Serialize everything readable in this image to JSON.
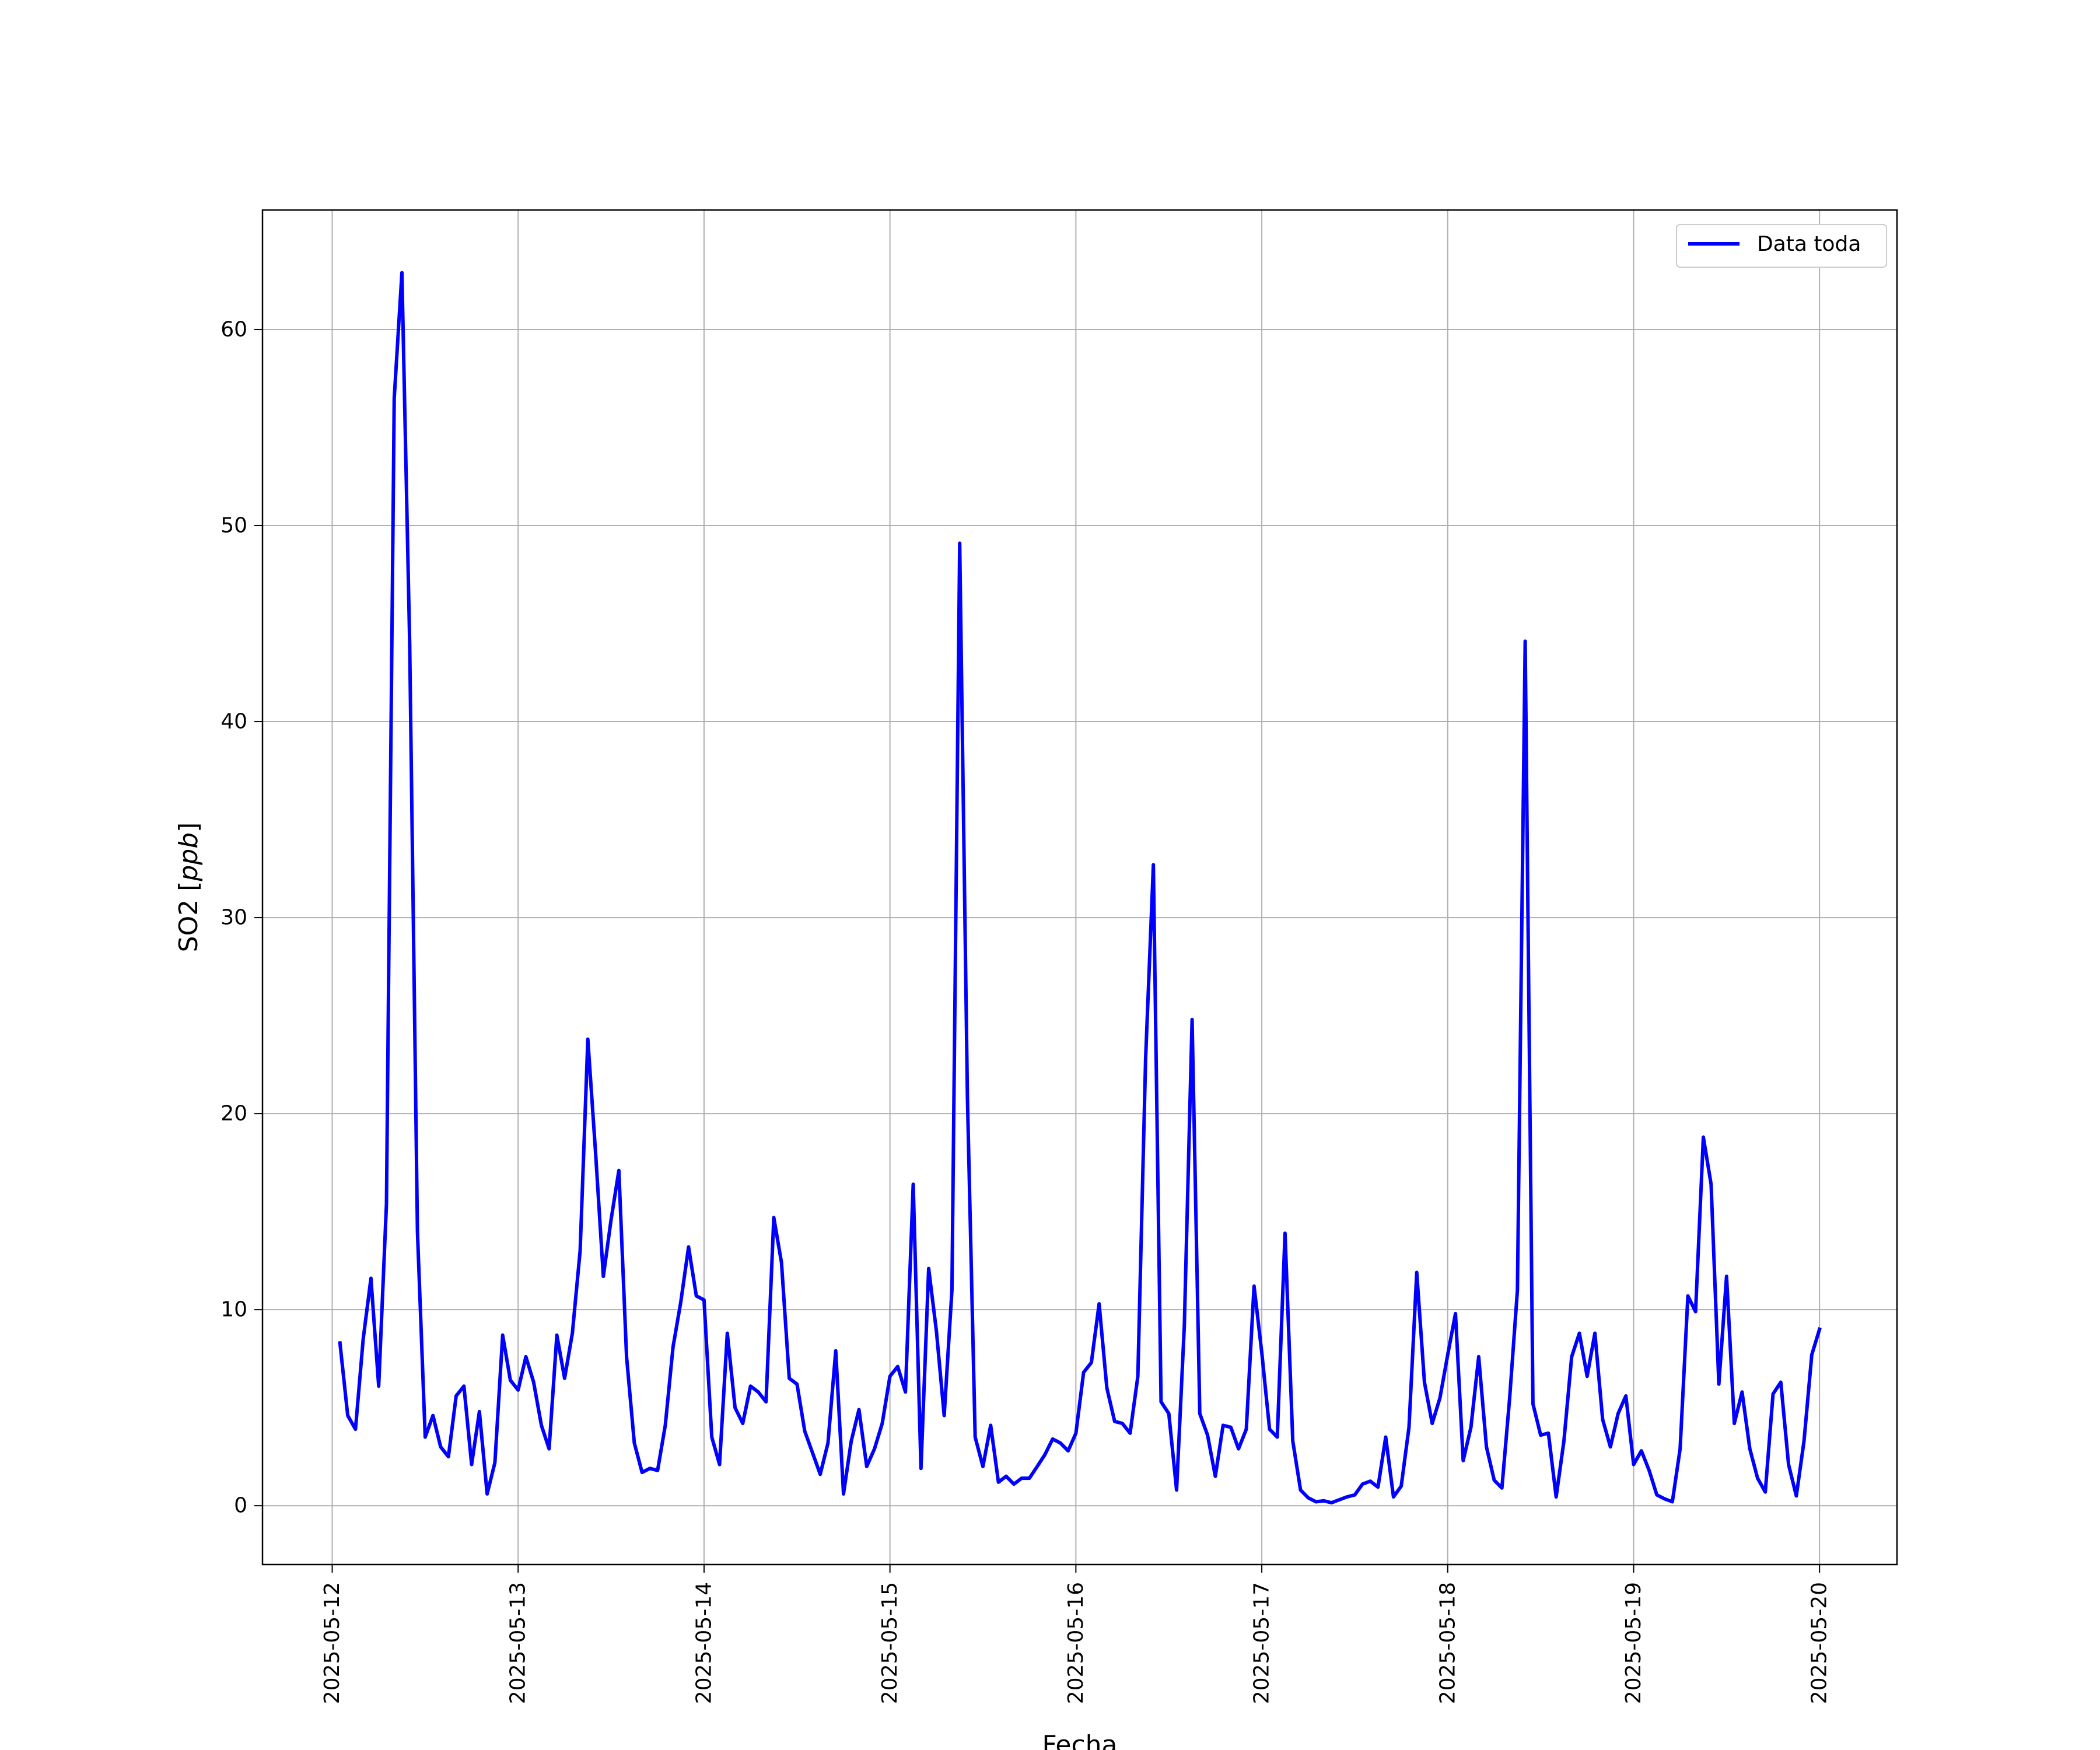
{
  "chart_data": {
    "type": "line",
    "xlabel": "Fecha",
    "ylabel_main": "SO2 [",
    "ylabel_unit": "ppb",
    "ylabel_close": "]",
    "x_tick_labels": [
      "2025-05-12",
      "2025-05-13",
      "2025-05-14",
      "2025-05-15",
      "2025-05-16",
      "2025-05-17",
      "2025-05-18",
      "2025-05-19",
      "2025-05-20"
    ],
    "y_ticks": [
      0,
      10,
      20,
      30,
      40,
      50,
      60
    ],
    "ylim": [
      -3.0,
      66.1
    ],
    "xlim": [
      "2025-05-11 15:00",
      "2025-05-20 10:00"
    ],
    "grid": true,
    "legend_position": "top-right",
    "series": [
      {
        "name": "Data toda",
        "color": "#0000ff",
        "x": [
          "2025-05-12 01:00",
          "2025-05-12 02:00",
          "2025-05-12 03:00",
          "2025-05-12 04:00",
          "2025-05-12 05:00",
          "2025-05-12 06:00",
          "2025-05-12 07:00",
          "2025-05-12 08:00",
          "2025-05-12 09:00",
          "2025-05-12 10:00",
          "2025-05-12 11:00",
          "2025-05-12 12:00",
          "2025-05-12 13:00",
          "2025-05-12 14:00",
          "2025-05-12 15:00",
          "2025-05-12 16:00",
          "2025-05-12 17:00",
          "2025-05-12 18:00",
          "2025-05-12 19:00",
          "2025-05-12 20:00",
          "2025-05-12 21:00",
          "2025-05-12 22:00",
          "2025-05-12 23:00",
          "2025-05-13 00:00",
          "2025-05-13 01:00",
          "2025-05-13 02:00",
          "2025-05-13 03:00",
          "2025-05-13 04:00",
          "2025-05-13 05:00",
          "2025-05-13 06:00",
          "2025-05-13 07:00",
          "2025-05-13 08:00",
          "2025-05-13 09:00",
          "2025-05-13 10:00",
          "2025-05-13 11:00",
          "2025-05-13 12:00",
          "2025-05-13 13:00",
          "2025-05-13 14:00",
          "2025-05-13 15:00",
          "2025-05-13 16:00",
          "2025-05-13 17:00",
          "2025-05-13 18:00",
          "2025-05-13 19:00",
          "2025-05-13 20:00",
          "2025-05-13 21:00",
          "2025-05-13 22:00",
          "2025-05-13 23:00",
          "2025-05-14 00:00",
          "2025-05-14 01:00",
          "2025-05-14 02:00",
          "2025-05-14 03:00",
          "2025-05-14 04:00",
          "2025-05-14 05:00",
          "2025-05-14 06:00",
          "2025-05-14 07:00",
          "2025-05-14 08:00",
          "2025-05-14 09:00",
          "2025-05-14 10:00",
          "2025-05-14 11:00",
          "2025-05-14 12:00",
          "2025-05-14 13:00",
          "2025-05-14 14:00",
          "2025-05-14 15:00",
          "2025-05-14 16:00",
          "2025-05-14 17:00",
          "2025-05-14 18:00",
          "2025-05-14 19:00",
          "2025-05-14 20:00",
          "2025-05-14 21:00",
          "2025-05-14 22:00",
          "2025-05-14 23:00",
          "2025-05-15 00:00",
          "2025-05-15 01:00",
          "2025-05-15 02:00",
          "2025-05-15 03:00",
          "2025-05-15 04:00",
          "2025-05-15 05:00",
          "2025-05-15 06:00",
          "2025-05-15 07:00",
          "2025-05-15 08:00",
          "2025-05-15 09:00",
          "2025-05-15 10:00",
          "2025-05-15 11:00",
          "2025-05-15 12:00",
          "2025-05-15 13:00",
          "2025-05-15 14:00",
          "2025-05-15 15:00",
          "2025-05-15 16:00",
          "2025-05-15 17:00",
          "2025-05-15 18:00",
          "2025-05-15 19:00",
          "2025-05-15 20:00",
          "2025-05-15 21:00",
          "2025-05-15 22:00",
          "2025-05-15 23:00",
          "2025-05-16 00:00",
          "2025-05-16 01:00",
          "2025-05-16 02:00",
          "2025-05-16 03:00",
          "2025-05-16 04:00",
          "2025-05-16 05:00",
          "2025-05-16 06:00",
          "2025-05-16 07:00",
          "2025-05-16 08:00",
          "2025-05-16 09:00",
          "2025-05-16 10:00",
          "2025-05-16 11:00",
          "2025-05-16 12:00",
          "2025-05-16 13:00",
          "2025-05-16 14:00",
          "2025-05-16 15:00",
          "2025-05-16 16:00",
          "2025-05-16 17:00",
          "2025-05-16 18:00",
          "2025-05-16 19:00",
          "2025-05-16 20:00",
          "2025-05-16 21:00",
          "2025-05-16 22:00",
          "2025-05-16 23:00",
          "2025-05-17 00:00",
          "2025-05-17 01:00",
          "2025-05-17 02:00",
          "2025-05-17 03:00",
          "2025-05-17 04:00",
          "2025-05-17 05:00",
          "2025-05-17 06:00",
          "2025-05-17 07:00",
          "2025-05-17 08:00",
          "2025-05-17 09:00",
          "2025-05-17 10:00",
          "2025-05-17 11:00",
          "2025-05-17 12:00",
          "2025-05-17 13:00",
          "2025-05-17 14:00",
          "2025-05-17 15:00",
          "2025-05-17 16:00",
          "2025-05-17 17:00",
          "2025-05-17 18:00",
          "2025-05-17 19:00",
          "2025-05-17 20:00",
          "2025-05-17 21:00",
          "2025-05-17 22:00",
          "2025-05-17 23:00",
          "2025-05-18 00:00",
          "2025-05-18 01:00",
          "2025-05-18 02:00",
          "2025-05-18 03:00",
          "2025-05-18 04:00",
          "2025-05-18 05:00",
          "2025-05-18 06:00",
          "2025-05-18 07:00",
          "2025-05-18 08:00",
          "2025-05-18 09:00",
          "2025-05-18 10:00",
          "2025-05-18 11:00",
          "2025-05-18 12:00",
          "2025-05-18 13:00",
          "2025-05-18 14:00",
          "2025-05-18 15:00",
          "2025-05-18 16:00",
          "2025-05-18 17:00",
          "2025-05-18 18:00",
          "2025-05-18 19:00",
          "2025-05-18 20:00",
          "2025-05-18 21:00",
          "2025-05-18 22:00",
          "2025-05-18 23:00",
          "2025-05-19 00:00",
          "2025-05-19 01:00",
          "2025-05-19 02:00",
          "2025-05-19 03:00",
          "2025-05-19 04:00",
          "2025-05-19 05:00",
          "2025-05-19 06:00",
          "2025-05-19 07:00",
          "2025-05-19 08:00",
          "2025-05-19 09:00",
          "2025-05-19 10:00",
          "2025-05-19 11:00",
          "2025-05-19 12:00",
          "2025-05-19 13:00",
          "2025-05-19 14:00",
          "2025-05-19 15:00",
          "2025-05-19 16:00",
          "2025-05-19 17:00",
          "2025-05-19 18:00",
          "2025-05-19 19:00",
          "2025-05-19 20:00",
          "2025-05-19 21:00",
          "2025-05-19 22:00",
          "2025-05-19 23:00",
          "2025-05-20 00:00"
        ],
        "values": [
          8.3,
          4.6,
          3.9,
          8.5,
          11.6,
          6.1,
          15.4,
          56.5,
          62.9,
          44.0,
          14.0,
          3.5,
          4.6,
          3.0,
          2.5,
          5.6,
          6.1,
          2.1,
          4.8,
          0.6,
          2.2,
          8.7,
          6.4,
          5.9,
          7.6,
          6.3,
          4.1,
          2.9,
          8.7,
          6.5,
          8.8,
          13.0,
          23.8,
          18.0,
          11.7,
          14.6,
          17.1,
          7.6,
          3.2,
          1.7,
          1.9,
          1.8,
          4.1,
          8.1,
          10.4,
          13.2,
          10.7,
          10.5,
          3.5,
          2.1,
          8.8,
          5.0,
          4.2,
          6.1,
          5.8,
          5.3,
          14.7,
          12.4,
          6.5,
          6.2,
          3.8,
          2.7,
          1.6,
          3.2,
          7.9,
          0.6,
          3.3,
          4.9,
          2.0,
          2.9,
          4.2,
          6.6,
          7.1,
          5.8,
          16.4,
          1.9,
          12.1,
          8.9,
          4.6,
          11.0,
          49.1,
          20.9,
          3.5,
          2.0,
          4.1,
          1.2,
          1.5,
          1.1,
          1.4,
          1.4,
          2.0,
          2.6,
          3.4,
          3.2,
          2.8,
          3.7,
          6.8,
          7.3,
          10.3,
          6.0,
          4.3,
          4.2,
          3.7,
          6.6,
          22.8,
          32.7,
          5.3,
          4.7,
          0.8,
          9.2,
          24.8,
          4.7,
          3.6,
          1.5,
          4.1,
          4.0,
          2.9,
          3.9,
          11.2,
          7.8,
          3.9,
          3.5,
          13.9,
          3.3,
          0.8,
          0.4,
          0.2,
          0.25,
          0.15,
          0.3,
          0.45,
          0.55,
          1.1,
          1.25,
          0.95,
          3.5,
          0.45,
          1.0,
          4.0,
          11.9,
          6.3,
          4.2,
          5.5,
          7.7,
          9.8,
          2.3,
          4.0,
          7.6,
          3.0,
          1.3,
          0.9,
          5.5,
          11.0,
          44.1,
          5.2,
          3.6,
          3.7,
          0.45,
          3.3,
          7.6,
          8.8,
          6.6,
          8.8,
          4.4,
          3.0,
          4.7,
          5.6,
          2.1,
          2.8,
          1.8,
          0.55,
          0.35,
          0.2,
          2.9,
          10.7,
          9.9,
          18.8,
          16.4,
          6.2,
          11.7,
          4.2,
          5.8,
          2.9,
          1.4,
          0.7,
          5.7,
          6.3,
          2.1,
          0.5,
          3.3,
          7.7,
          9.0
        ]
      }
    ]
  }
}
